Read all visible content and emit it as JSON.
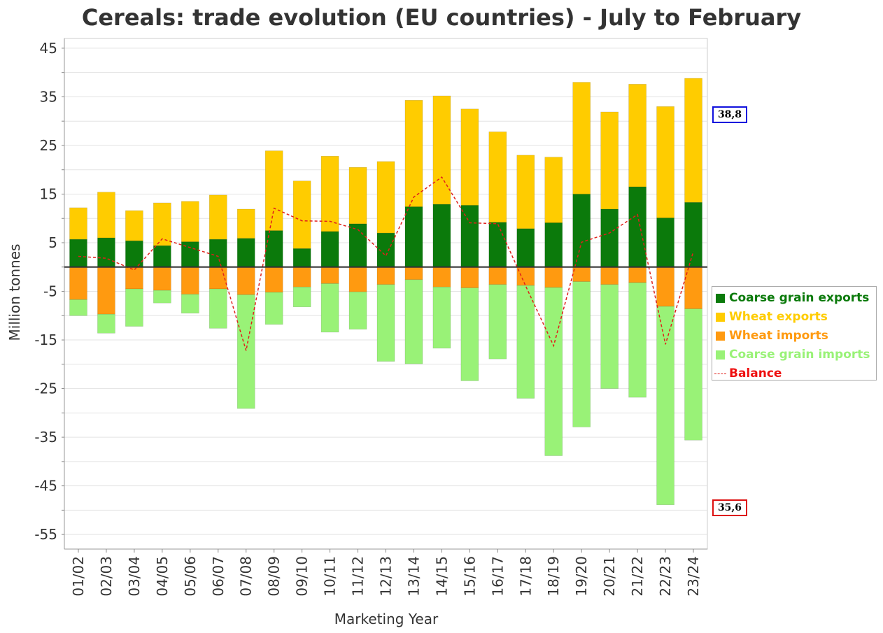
{
  "chart_data": {
    "type": "bar",
    "stacked": true,
    "title": "Cereals: trade evolution (EU countries) - July to February",
    "xlabel": "Marketing Year",
    "ylabel": "Million tonnes",
    "ylim": [
      -58,
      47
    ],
    "yticks": [
      45,
      35,
      25,
      15,
      5,
      -5,
      -15,
      -25,
      -35,
      -45,
      -55
    ],
    "grid": true,
    "legend_position": "right",
    "categories": [
      "01/02",
      "02/03",
      "03/04",
      "04/05",
      "05/06",
      "06/07",
      "07/08",
      "08/09",
      "09/10",
      "10/11",
      "11/12",
      "12/13",
      "13/14",
      "14/15",
      "15/16",
      "16/17",
      "17/18",
      "18/19",
      "19/20",
      "20/21",
      "21/22",
      "22/23",
      "23/24"
    ],
    "series": [
      {
        "name": "Coarse grain exports",
        "color": "#0b7a0b",
        "role": "positive-bottom",
        "values": [
          5.7,
          6.0,
          5.4,
          4.4,
          5.2,
          5.7,
          5.9,
          7.5,
          3.8,
          7.3,
          8.9,
          7.0,
          12.4,
          12.9,
          12.7,
          9.2,
          7.9,
          9.1,
          15.0,
          11.9,
          16.5,
          10.1,
          13.3
        ]
      },
      {
        "name": "Wheat exports",
        "color": "#ffcc00",
        "role": "positive-top",
        "values": [
          6.5,
          9.4,
          6.2,
          8.8,
          8.3,
          9.1,
          6.0,
          16.4,
          13.9,
          15.5,
          11.6,
          14.7,
          21.9,
          22.3,
          19.8,
          18.6,
          15.1,
          13.5,
          23.0,
          20.0,
          21.1,
          22.9,
          25.5
        ]
      },
      {
        "name": "Wheat imports",
        "color": "#ff9a10",
        "role": "negative-top",
        "values": [
          -6.7,
          -9.7,
          -4.5,
          -4.8,
          -5.6,
          -4.5,
          -5.7,
          -5.2,
          -4.1,
          -3.4,
          -5.1,
          -3.6,
          -2.6,
          -4.1,
          -4.3,
          -3.6,
          -3.8,
          -4.2,
          -3.0,
          -3.6,
          -3.2,
          -8.1,
          -8.6
        ]
      },
      {
        "name": "Coarse grain imports",
        "color": "#99f277",
        "role": "negative-bottom",
        "values": [
          -3.3,
          -3.9,
          -7.7,
          -2.6,
          -3.9,
          -8.1,
          -23.4,
          -6.6,
          -4.1,
          -10.0,
          -7.7,
          -15.8,
          -17.3,
          -12.6,
          -19.1,
          -15.3,
          -23.2,
          -34.6,
          -29.9,
          -21.4,
          -23.6,
          -40.8,
          -27.0
        ]
      },
      {
        "name": "Balance",
        "color": "#e0201b",
        "type": "line",
        "dashed": true,
        "values": [
          2.2,
          1.8,
          -0.6,
          5.8,
          4.0,
          2.2,
          -17.2,
          12.1,
          9.5,
          9.4,
          7.7,
          2.3,
          14.4,
          18.5,
          9.1,
          8.9,
          -3.9,
          -16.2,
          5.1,
          7.0,
          10.8,
          -15.9,
          3.2
        ]
      }
    ],
    "annotations": [
      {
        "text": "38,8",
        "border_color": "#1010dd"
      },
      {
        "text": "35,6",
        "border_color": "#dd1010"
      }
    ]
  }
}
